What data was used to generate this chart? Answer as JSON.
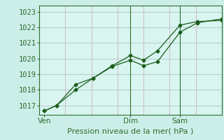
{
  "title": "",
  "xlabel": "Pression niveau de la mer( hPa )",
  "background_color": "#cceee8",
  "plot_bg_color": "#d8f5f0",
  "grid_color": "#b8c8cc",
  "line_color": "#1a5c1a",
  "spine_color": "#2d6e2d",
  "ylim": [
    1016.4,
    1023.4
  ],
  "xlim": [
    0.0,
    10.5
  ],
  "xtick_positions": [
    0.3,
    5.25,
    8.1
  ],
  "xtick_labels": [
    "Ven",
    "Dim",
    "Sam"
  ],
  "ytick_positions": [
    1017,
    1018,
    1019,
    1020,
    1021,
    1022,
    1023
  ],
  "ytick_labels": [
    "1017",
    "1018",
    "1019",
    "1020",
    "1021",
    "1022",
    "1023"
  ],
  "vlines_x": [
    5.25,
    8.1
  ],
  "hgrid_x": [
    0,
    1.5,
    3.0,
    4.5,
    6.0,
    7.5,
    9.0,
    10.5
  ],
  "series1_x": [
    0.3,
    1.0,
    2.1,
    3.1,
    4.2,
    5.25,
    6.0,
    6.8,
    8.1,
    9.1,
    10.5
  ],
  "series1_y": [
    1016.65,
    1017.0,
    1018.0,
    1018.75,
    1019.5,
    1019.9,
    1019.55,
    1019.8,
    1021.7,
    1022.3,
    1022.55
  ],
  "series2_x": [
    0.3,
    1.0,
    2.1,
    3.1,
    4.2,
    5.25,
    6.0,
    6.8,
    8.1,
    9.1,
    10.5
  ],
  "series2_y": [
    1016.65,
    1017.0,
    1018.35,
    1018.75,
    1019.55,
    1020.2,
    1019.9,
    1020.5,
    1022.15,
    1022.38,
    1022.45
  ],
  "font_color": "#2d6e2d",
  "font_size": 7.5,
  "xlabel_fontsize": 8,
  "marker": "D",
  "marker_size": 2.5
}
